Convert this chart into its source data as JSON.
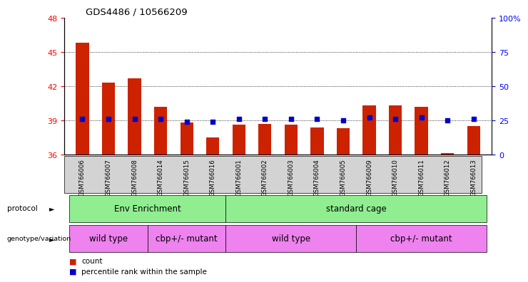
{
  "title": "GDS4486 / 10566209",
  "samples": [
    "GSM766006",
    "GSM766007",
    "GSM766008",
    "GSM766014",
    "GSM766015",
    "GSM766016",
    "GSM766001",
    "GSM766002",
    "GSM766003",
    "GSM766004",
    "GSM766005",
    "GSM766009",
    "GSM766010",
    "GSM766011",
    "GSM766012",
    "GSM766013"
  ],
  "counts": [
    45.8,
    42.3,
    42.7,
    40.2,
    38.8,
    37.5,
    38.6,
    38.7,
    38.6,
    38.4,
    38.3,
    40.3,
    40.3,
    40.2,
    36.1,
    38.5
  ],
  "percentiles": [
    26,
    26,
    26,
    26,
    24,
    24,
    26,
    26,
    26,
    26,
    25,
    27,
    26,
    27,
    25,
    26
  ],
  "ylim_left": [
    36,
    48
  ],
  "ylim_right": [
    0,
    100
  ],
  "yticks_left": [
    36,
    39,
    42,
    45,
    48
  ],
  "yticks_right": [
    0,
    25,
    50,
    75,
    100
  ],
  "bar_color": "#cc2200",
  "dot_color": "#0000cc",
  "protocol_color": "#90ee90",
  "genotype_color": "#ee82ee",
  "sample_label_bg": "#d3d3d3",
  "proto_spans": [
    [
      0,
      5,
      "Env Enrichment"
    ],
    [
      6,
      15,
      "standard cage"
    ]
  ],
  "geno_spans": [
    [
      0,
      2,
      "wild type"
    ],
    [
      3,
      5,
      "cbp+/- mutant"
    ],
    [
      6,
      10,
      "wild type"
    ],
    [
      11,
      15,
      "cbp+/- mutant"
    ]
  ],
  "legend_count_label": "count",
  "legend_percentile_label": "percentile rank within the sample"
}
